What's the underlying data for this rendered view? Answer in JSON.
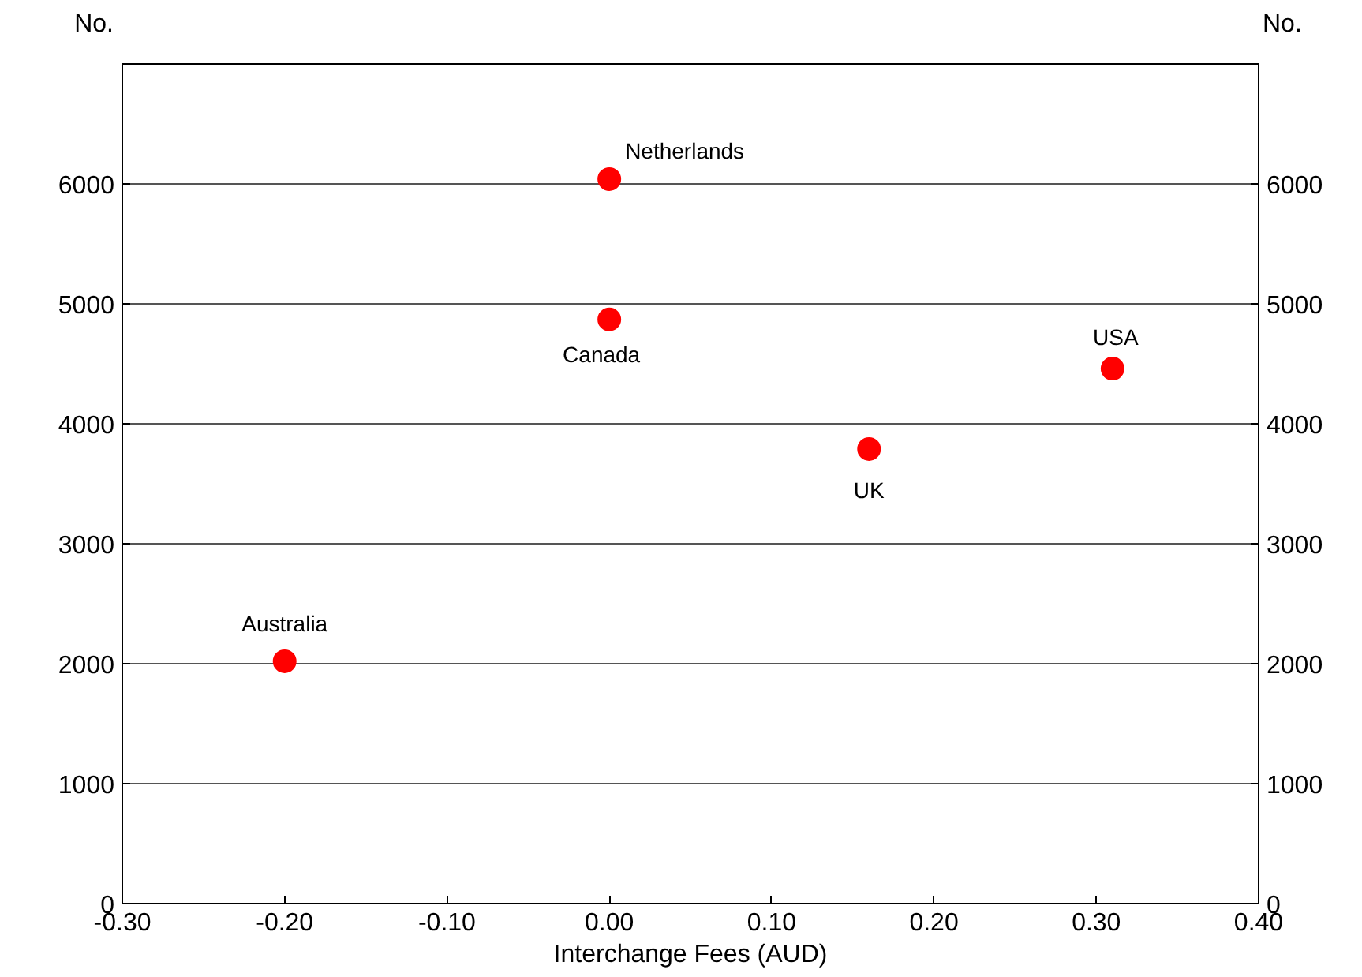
{
  "chart_data": {
    "type": "scatter",
    "xlabel": "Interchange Fees (AUD)",
    "ylabel": "No.",
    "y2label": "No.",
    "x": [
      -0.2,
      0.0,
      0.0,
      0.16,
      0.31
    ],
    "series": [
      {
        "color": "#ff0000",
        "values": [
          2020,
          6040,
          4870,
          3790,
          4460
        ]
      }
    ],
    "annotations": [
      {
        "text": "Australia",
        "x": -0.2,
        "y": 2020
      },
      {
        "text": "Netherlands",
        "x": 0.0,
        "y": 6040
      },
      {
        "text": "Canada",
        "x": 0.0,
        "y": 4870
      },
      {
        "text": "UK",
        "x": 0.16,
        "y": 3790
      },
      {
        "text": "USA",
        "x": 0.31,
        "y": 4460
      }
    ],
    "xlim": [
      -0.3,
      0.4
    ],
    "xticks": [
      {
        "value": -0.3,
        "label": "-0.30"
      },
      {
        "value": -0.2,
        "label": "-0.20"
      },
      {
        "value": -0.1,
        "label": "-0.10"
      },
      {
        "value": 0,
        "label": "0.00"
      },
      {
        "value": 0.1,
        "label": "0.10"
      },
      {
        "value": 0.2,
        "label": "0.20"
      },
      {
        "value": 0.3,
        "label": "0.30"
      },
      {
        "value": 0.4,
        "label": "0.40"
      }
    ],
    "ylim": [
      0,
      7000
    ],
    "yticks": [
      0,
      1000,
      2000,
      3000,
      4000,
      5000,
      6000
    ],
    "y2lim": [
      0,
      7000
    ],
    "y2ticks": [
      0,
      1000,
      2000,
      3000,
      4000,
      5000,
      6000
    ],
    "grid": "y",
    "marker": "circle"
  }
}
